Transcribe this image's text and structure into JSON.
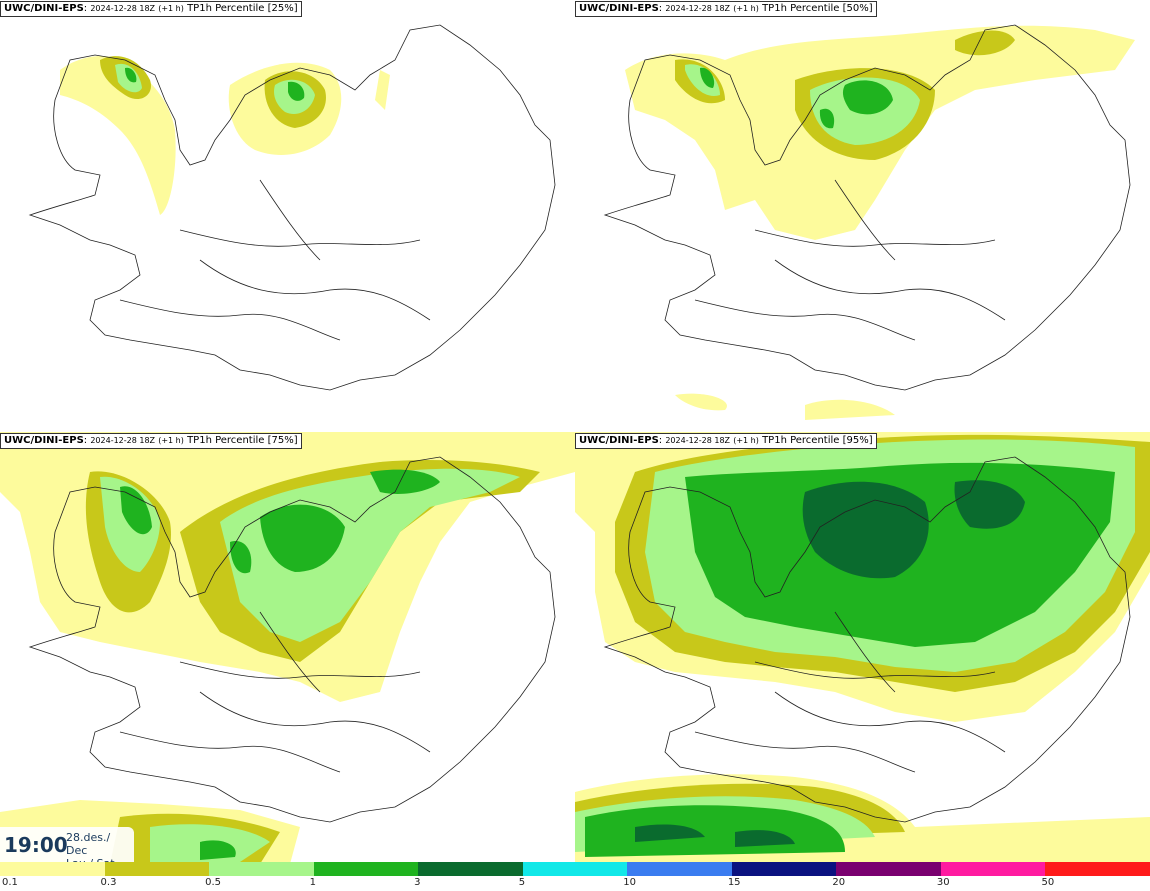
{
  "panels": [
    {
      "source": "UWC/DINI-EPS",
      "run": "2024-12-28 18Z",
      "lead": "(+1 h)",
      "field": "TP1h Percentile [25%]"
    },
    {
      "source": "UWC/DINI-EPS",
      "run": "2024-12-28 18Z",
      "lead": "(+1 h)",
      "field": "TP1h Percentile [50%]"
    },
    {
      "source": "UWC/DINI-EPS",
      "run": "2024-12-28 18Z",
      "lead": "(+1 h)",
      "field": "TP1h Percentile [75%]"
    },
    {
      "source": "UWC/DINI-EPS",
      "run": "2024-12-28 18Z",
      "lead": "(+1 h)",
      "field": "TP1h Percentile [95%]"
    }
  ],
  "valid_time": {
    "time": "19:00",
    "date_line1": "28.des./ Dec",
    "date_line2": "Lau./ Sat"
  },
  "colorbar": {
    "ticks": [
      "0.1",
      "0.3",
      "0.5",
      "1",
      "3",
      "5",
      "10",
      "15",
      "20",
      "30",
      "50"
    ],
    "colors": [
      "#fdfb9c",
      "#c8c81a",
      "#a6f58a",
      "#1fb31f",
      "#0a6b2e",
      "#12e8e8",
      "#3a7cf0",
      "#0b1280",
      "#7a0070",
      "#ff1aa0",
      "#ff1a1a"
    ]
  },
  "map": {
    "outline_color": "#222222",
    "shading_levels": [
      "#fdfb9c",
      "#c8c81a",
      "#a6f58a",
      "#1fb31f",
      "#0a6b2e"
    ]
  }
}
